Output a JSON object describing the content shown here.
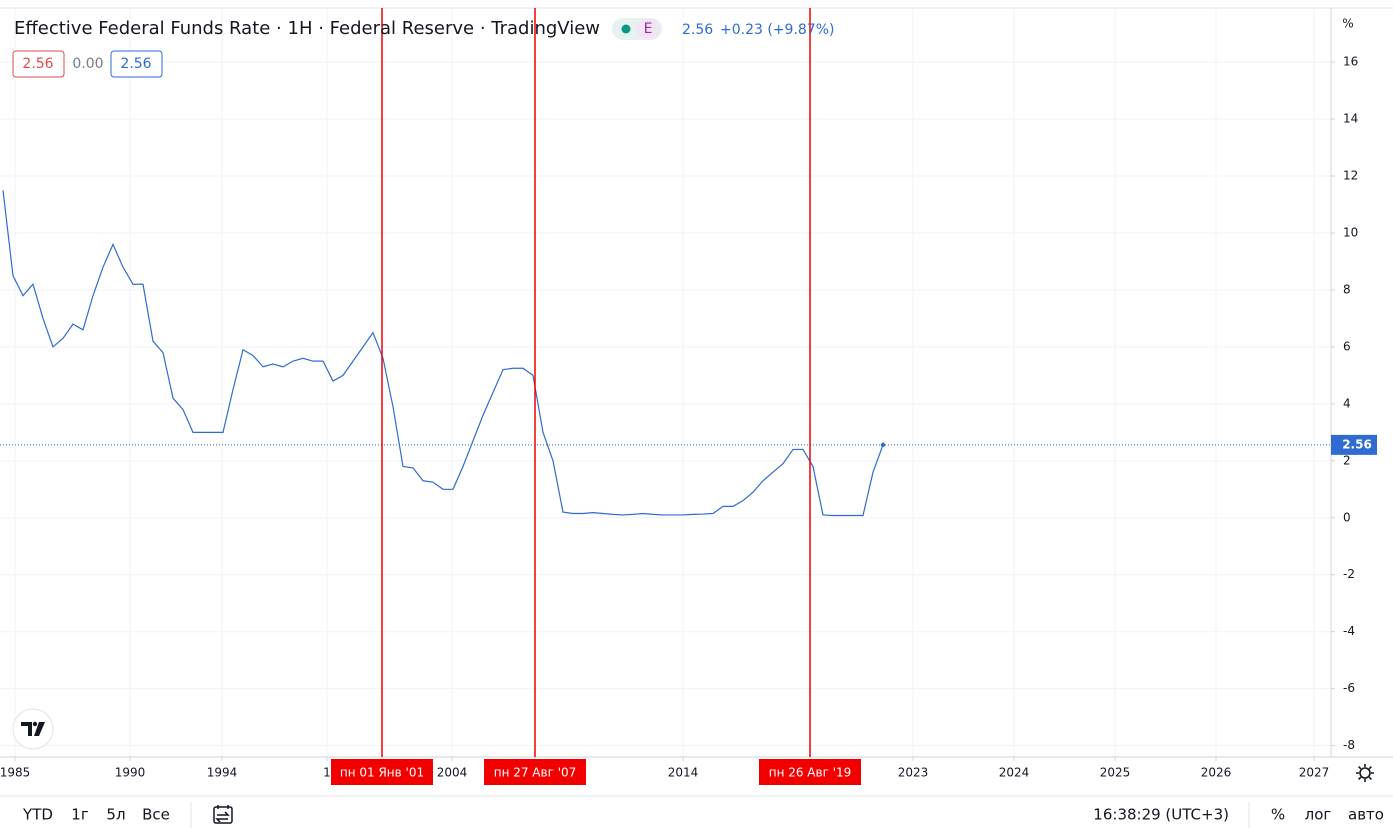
{
  "chart_data": {
    "type": "line",
    "title": "Effective Federal Funds Rate · 1H · Federal Reserve · TradingView",
    "badge": "E",
    "last_value": 2.56,
    "change_label": "+0.23 (+9.87%)",
    "inputs": [
      "2.56",
      "0.00",
      "2.56"
    ],
    "y_unit": "%",
    "series": [
      {
        "name": "Effective Federal Funds Rate",
        "color": "#2f6bd1",
        "values": [
          11.5,
          8.5,
          7.8,
          8.2,
          7.0,
          6.0,
          6.3,
          6.8,
          6.6,
          7.8,
          8.8,
          9.6,
          8.8,
          8.2,
          8.2,
          6.2,
          5.8,
          4.2,
          3.8,
          3.0,
          3.0,
          3.0,
          3.0,
          4.5,
          5.9,
          5.7,
          5.3,
          5.4,
          5.3,
          5.5,
          5.6,
          5.5,
          5.5,
          4.8,
          5.0,
          5.5,
          6.0,
          6.5,
          5.6,
          3.9,
          1.8,
          1.75,
          1.3,
          1.25,
          1.0,
          1.0,
          1.8,
          2.7,
          3.6,
          4.4,
          5.2,
          5.25,
          5.25,
          5.0,
          3.0,
          2.0,
          0.2,
          0.15,
          0.15,
          0.18,
          0.15,
          0.12,
          0.1,
          0.12,
          0.15,
          0.12,
          0.1,
          0.1,
          0.1,
          0.12,
          0.13,
          0.15,
          0.4,
          0.4,
          0.6,
          0.9,
          1.3,
          1.6,
          1.9,
          2.4,
          2.4,
          1.8,
          0.1,
          0.08,
          0.08,
          0.08,
          0.08,
          1.6,
          2.56
        ]
      }
    ],
    "xlim": [
      -0.3,
      132.8
    ],
    "xticks": [
      {
        "value": 1.2,
        "label": "1985"
      },
      {
        "value": 12.7,
        "label": "1990"
      },
      {
        "value": 21.9,
        "label": "1994"
      },
      {
        "value": 32.4,
        "label": "1"
      },
      {
        "value": 44.9,
        "label": "2004"
      },
      {
        "value": 68,
        "label": "2014"
      },
      {
        "value": 91,
        "label": "2023"
      },
      {
        "value": 101.1,
        "label": "2024"
      },
      {
        "value": 111.2,
        "label": "2025"
      },
      {
        "value": 121.3,
        "label": "2026"
      },
      {
        "value": 131.1,
        "label": "2027"
      }
    ],
    "ylim": [
      -8.4,
      17.9
    ],
    "yticks": [
      -8,
      -6,
      -4,
      -2,
      0,
      2,
      4,
      6,
      8,
      10,
      12,
      14,
      16
    ],
    "grid": true,
    "markers": [
      {
        "x": 37.9,
        "label": "пн 01 Янв '01",
        "color": "#f20000"
      },
      {
        "x": 53.2,
        "label": "пн 27 Авг '07",
        "color": "#f20000"
      },
      {
        "x": 80.7,
        "label": "пн 26 Авг '19",
        "color": "#f20000"
      }
    ]
  },
  "toolbar": {
    "ranges": [
      "YTD",
      "1г",
      "5л",
      "Все"
    ],
    "time": "16:38:29 (UTC+3)",
    "options": [
      "%",
      "лог",
      "авто"
    ]
  }
}
